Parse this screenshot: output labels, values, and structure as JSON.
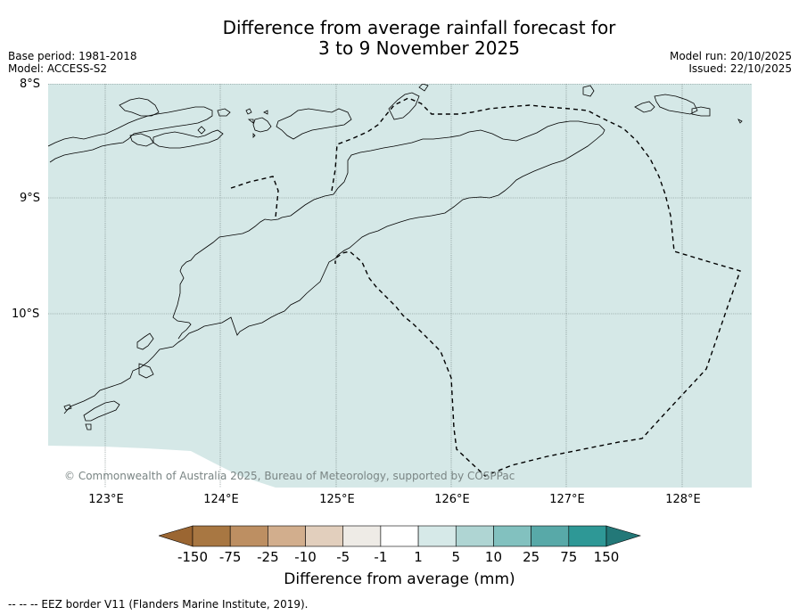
{
  "title_line1": "Difference from average rainfall forecast for",
  "title_line2": "3 to 9 November 2025",
  "meta_left": [
    "Base period: 1981-2018",
    "Model: ACCESS-S2"
  ],
  "meta_right": [
    "Model run: 20/10/2025",
    "Issued: 22/10/2025"
  ],
  "lat_labels": [
    "8°S",
    "9°S",
    "10°S"
  ],
  "lon_labels": [
    "123°E",
    "124°E",
    "125°E",
    "126°E",
    "127°E",
    "128°E"
  ],
  "copyright": "© Commonwealth of Australia 2025, Bureau of Meteorology, supported by COSPPac",
  "colorbar": {
    "ticks": [
      "-150",
      "-75",
      "-25",
      "-10",
      "-5",
      "-1",
      "1",
      "5",
      "10",
      "25",
      "75",
      "150"
    ],
    "colors": [
      "#a87742",
      "#bd8f62",
      "#d2ae8d",
      "#e2cfbd",
      "#eeebe6",
      "#ffffff",
      "#d6e9e8",
      "#afd5d3",
      "#82c1bf",
      "#58a9a8",
      "#2e9896"
    ],
    "low_extend_color": "#9b6632",
    "high_extend_color": "#237878",
    "label": "Difference from average (mm)"
  },
  "map_colors": {
    "sea": "#d5e8e7",
    "land_border": "#000000"
  },
  "footer": "--  --  -- EEZ border V11 (Flanders Marine Institute, 2019)."
}
